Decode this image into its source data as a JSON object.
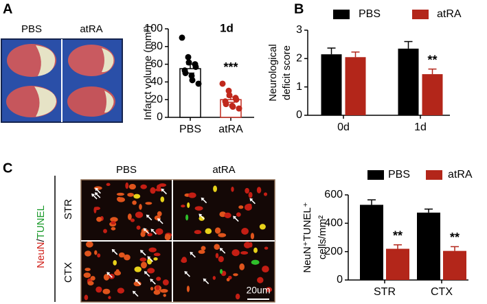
{
  "figure": {
    "panel_labels": [
      "A",
      "B",
      "C"
    ],
    "brain_labels": [
      "PBS",
      "atRA"
    ],
    "micro_columns": [
      "PBS",
      "atRA"
    ],
    "micro_rows": [
      "STR",
      "CTX"
    ],
    "stain_label": [
      "NeuN",
      "/",
      "TUNEL"
    ],
    "scale_label": "20um"
  },
  "chart_data": [
    {
      "type": "bar",
      "title": "1d",
      "ylabel": [
        "Infarct volume (mm³)"
      ],
      "categories": [
        "PBS",
        "atRA"
      ],
      "values": [
        55,
        20
      ],
      "errors": [
        5,
        3
      ],
      "points": [
        [
          90,
          68,
          62,
          60,
          57,
          53,
          50,
          47,
          42,
          38
        ],
        [
          38,
          30,
          25,
          22,
          20,
          18,
          15,
          13,
          12,
          10
        ]
      ],
      "colors": [
        "#000000",
        "#c0281c"
      ],
      "ylim": [
        0,
        100
      ],
      "yticks": [
        0,
        20,
        40,
        60,
        80,
        100
      ],
      "annotations": [
        {
          "text": "***",
          "category": "atRA"
        }
      ]
    },
    {
      "type": "groupedbar",
      "ylabel": [
        "Neurological",
        "deficit score"
      ],
      "categories": [
        "0d",
        "1d"
      ],
      "series": [
        {
          "name": "PBS",
          "color": "#000000",
          "values": [
            2.15,
            2.35
          ],
          "errors": [
            0.22,
            0.25
          ]
        },
        {
          "name": "atRA",
          "color": "#b3261a",
          "values": [
            2.05,
            1.45
          ],
          "errors": [
            0.18,
            0.18
          ]
        }
      ],
      "ylim": [
        0,
        3
      ],
      "yticks": [
        0,
        1,
        2,
        3
      ],
      "legend": "top",
      "annotations": [
        {
          "text": "**",
          "category": "1d",
          "series": "atRA"
        }
      ]
    },
    {
      "type": "groupedbar",
      "ylabel": [
        "NeuN⁺TUNEL⁺",
        "cells/mm²"
      ],
      "categories": [
        "STR",
        "CTX"
      ],
      "series": [
        {
          "name": "PBS",
          "color": "#000000",
          "values": [
            530,
            475
          ],
          "errors": [
            35,
            25
          ]
        },
        {
          "name": "atRA",
          "color": "#b3261a",
          "values": [
            220,
            205
          ],
          "errors": [
            28,
            30
          ]
        }
      ],
      "ylim": [
        0,
        600
      ],
      "yticks": [
        0,
        200,
        400,
        600
      ],
      "legend": "top",
      "annotations": [
        {
          "text": "**",
          "category": "STR",
          "series": "atRA"
        },
        {
          "text": "**",
          "category": "CTX",
          "series": "atRA"
        }
      ]
    }
  ]
}
